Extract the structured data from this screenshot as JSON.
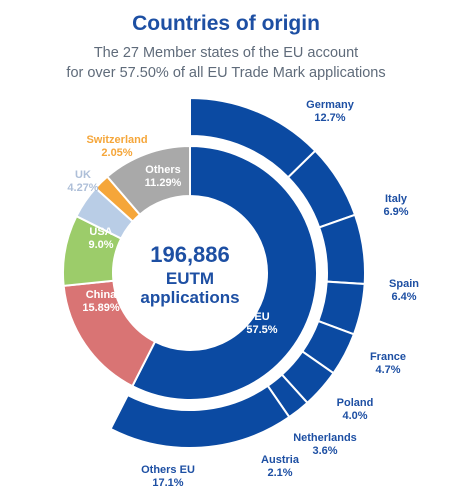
{
  "title": "Countries of origin",
  "subtitle_lines": [
    "The 27 Member states of the EU account",
    "for over 57.50% of all EU Trade Mark applications"
  ],
  "center": {
    "number": "196,886",
    "line1": "EUTM",
    "line2": "applications"
  },
  "colors": {
    "eu": "#0b4aa2",
    "china": "#d97474",
    "usa": "#9ccc6a",
    "uk": "#b9cde6",
    "switzerland": "#f5a63a",
    "others": "#a9a9a9",
    "title": "#1d4fa3"
  },
  "chart_data": [
    {
      "type": "pie",
      "subtype": "donut",
      "categories": [
        "EU",
        "China",
        "USA",
        "UK",
        "Switzerland",
        "Others"
      ],
      "values": [
        57.5,
        15.89,
        9.0,
        4.27,
        2.05,
        11.29
      ],
      "labels": [
        "EU",
        "China",
        "USA",
        "UK",
        "Switzerland",
        "Others"
      ],
      "value_labels": [
        "57.5%",
        "15.89%",
        "9.0%",
        "4.27%",
        "2.05%",
        "11.29%"
      ]
    },
    {
      "type": "pie",
      "subtype": "outer-ring",
      "categories": [
        "Germany",
        "Italy",
        "Spain",
        "France",
        "Poland",
        "Netherlands",
        "Austria",
        "Others EU"
      ],
      "values": [
        12.7,
        6.9,
        6.4,
        4.7,
        4.0,
        3.6,
        2.1,
        17.1
      ],
      "labels": [
        "Germany",
        "Italy",
        "Spain",
        "France",
        "Poland",
        "Netherlands",
        "Austria",
        "Others EU"
      ],
      "value_labels": [
        "12.7%",
        "6.9%",
        "6.4%",
        "4.7%",
        "4.0%",
        "3.6%",
        "2.1%",
        "17.1%"
      ]
    }
  ]
}
